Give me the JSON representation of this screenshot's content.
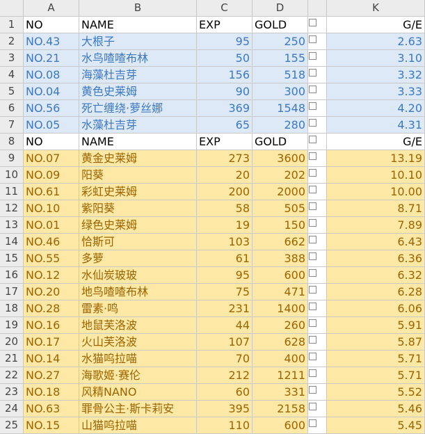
{
  "columns": [
    "A",
    "B",
    "C",
    "D",
    "K"
  ],
  "header_row": {
    "no": "NO",
    "name": "NAME",
    "exp": "EXP",
    "gold": "GOLD",
    "ge": "G/E"
  },
  "blue_rows": [
    {
      "row": "2",
      "no": "NO.43",
      "name": "大根子",
      "exp": "95",
      "gold": "250",
      "ge": "2.63"
    },
    {
      "row": "3",
      "no": "NO.21",
      "name": "水鸟喳喳布林",
      "exp": "50",
      "gold": "155",
      "ge": "3.10"
    },
    {
      "row": "4",
      "no": "NO.08",
      "name": "海藻杜吉芽",
      "exp": "156",
      "gold": "518",
      "ge": "3.32"
    },
    {
      "row": "5",
      "no": "NO.04",
      "name": "黄色史莱姆",
      "exp": "90",
      "gold": "300",
      "ge": "3.33"
    },
    {
      "row": "6",
      "no": "NO.56",
      "name": "死亡缠绕·萝丝娜",
      "exp": "369",
      "gold": "1548",
      "ge": "4.20"
    },
    {
      "row": "7",
      "no": "NO.05",
      "name": "水藻杜吉芽",
      "exp": "65",
      "gold": "280",
      "ge": "4.31"
    }
  ],
  "yellow_rows": [
    {
      "row": "9",
      "no": "NO.07",
      "name": "黄金史莱姆",
      "exp": "273",
      "gold": "3600",
      "ge": "13.19"
    },
    {
      "row": "10",
      "no": "NO.09",
      "name": "阳葵",
      "exp": "20",
      "gold": "202",
      "ge": "10.10"
    },
    {
      "row": "11",
      "no": "NO.61",
      "name": "彩虹史莱姆",
      "exp": "200",
      "gold": "2000",
      "ge": "10.00"
    },
    {
      "row": "12",
      "no": "NO.10",
      "name": "紫阳葵",
      "exp": "58",
      "gold": "505",
      "ge": "8.71"
    },
    {
      "row": "13",
      "no": "NO.01",
      "name": "绿色史莱姆",
      "exp": "19",
      "gold": "150",
      "ge": "7.89"
    },
    {
      "row": "14",
      "no": "NO.46",
      "name": "恰斯可",
      "exp": "103",
      "gold": "662",
      "ge": "6.43"
    },
    {
      "row": "15",
      "no": "NO.55",
      "name": "多萝",
      "exp": "61",
      "gold": "388",
      "ge": "6.36"
    },
    {
      "row": "16",
      "no": "NO.12",
      "name": "水仙炭玻玻",
      "exp": "95",
      "gold": "600",
      "ge": "6.32"
    },
    {
      "row": "17",
      "no": "NO.20",
      "name": "地鸟喳喳布林",
      "exp": "75",
      "gold": "471",
      "ge": "6.28"
    },
    {
      "row": "18",
      "no": "NO.28",
      "name": "雷素·鸣",
      "exp": "231",
      "gold": "1400",
      "ge": "6.06"
    },
    {
      "row": "19",
      "no": "NO.16",
      "name": "地鼠芙洛波",
      "exp": "44",
      "gold": "260",
      "ge": "5.91"
    },
    {
      "row": "20",
      "no": "NO.17",
      "name": "火山芙洛波",
      "exp": "107",
      "gold": "628",
      "ge": "5.87"
    },
    {
      "row": "21",
      "no": "NO.14",
      "name": "水猫呜拉喵",
      "exp": "70",
      "gold": "400",
      "ge": "5.71"
    },
    {
      "row": "22",
      "no": "NO.27",
      "name": "海歌姬·赛伦",
      "exp": "212",
      "gold": "1211",
      "ge": "5.71"
    },
    {
      "row": "23",
      "no": "NO.18",
      "name": "风精NANO",
      "exp": "60",
      "gold": "331",
      "ge": "5.52"
    },
    {
      "row": "24",
      "no": "NO.63",
      "name": "罪骨公主·斯卡莉安",
      "exp": "395",
      "gold": "2158",
      "ge": "5.46"
    },
    {
      "row": "25",
      "no": "NO.15",
      "name": "山猫呜拉喵",
      "exp": "110",
      "gold": "600",
      "ge": "5.45"
    }
  ],
  "header_row_numbers": [
    "1",
    "8"
  ],
  "colors": {
    "blue_fill": "#dde9f6",
    "blue_text": "#3d78c0",
    "yellow_fill": "#fde9a5",
    "yellow_text": "#9c6400"
  }
}
